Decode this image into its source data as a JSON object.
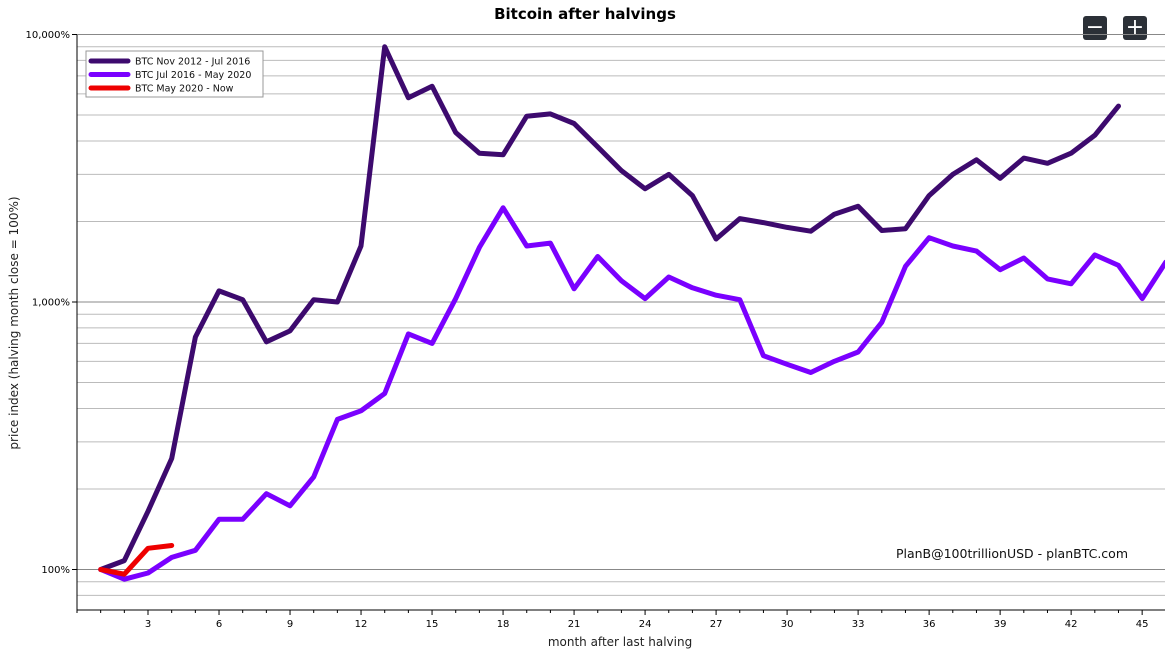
{
  "zoom": {
    "out_label": "−",
    "in_label": "+"
  },
  "chart_data": {
    "type": "line",
    "title": "Bitcoin after halvings",
    "xlabel": "month after last halving",
    "ylabel": "price index (halving month close = 100%)",
    "xlim": [
      0,
      46.8
    ],
    "ylim": [
      75,
      10000
    ],
    "y_scale": "log",
    "x_ticks": [
      3,
      6,
      9,
      12,
      15,
      18,
      21,
      24,
      27,
      30,
      33,
      36,
      39,
      42,
      45
    ],
    "y_ticks": [
      {
        "value": 100,
        "label": "100%"
      },
      {
        "value": 1000,
        "label": "1,000%"
      },
      {
        "value": 10000,
        "label": "10,000%"
      }
    ],
    "grid": true,
    "legend_position": "top-left",
    "annotation": "PlanB@100trillionUSD  -  planBTC.com",
    "series": [
      {
        "name": "BTC Nov 2012 - Jul 2016",
        "color": "#3d0a6e",
        "x": [
          0,
          1,
          2,
          3,
          4,
          5,
          6,
          7,
          8,
          9,
          10,
          11,
          12,
          13,
          14,
          15,
          16,
          17,
          18,
          19,
          20,
          21,
          22,
          23,
          24,
          25,
          26,
          27,
          28,
          29,
          30,
          31,
          32,
          33,
          34,
          35,
          36,
          37,
          38,
          39,
          40,
          41,
          42,
          43,
          44
        ],
        "values": [
          100,
          108,
          165,
          260,
          740,
          1100,
          1020,
          710,
          780,
          1020,
          1000,
          1620,
          9000,
          5800,
          6400,
          4300,
          3600,
          3550,
          4950,
          5050,
          4650,
          3800,
          3100,
          2650,
          3000,
          2500,
          1720,
          2050,
          1980,
          1900,
          1840,
          2130,
          2280,
          1850,
          1880,
          2500,
          3000,
          3400,
          2900,
          3450,
          3300,
          3600,
          4200,
          5400,
          null
        ]
      },
      {
        "name": "BTC Jul 2016 - May 2020",
        "color": "#7a00ff",
        "x": [
          0,
          1,
          2,
          3,
          4,
          5,
          6,
          7,
          8,
          9,
          10,
          11,
          12,
          13,
          14,
          15,
          16,
          17,
          18,
          19,
          20,
          21,
          22,
          23,
          24,
          25,
          26,
          27,
          28,
          29,
          30,
          31,
          32,
          33,
          34,
          35,
          36,
          37,
          38,
          39,
          40,
          41,
          42,
          43,
          44,
          45,
          46,
          47
        ],
        "values": [
          100,
          92,
          97,
          111,
          118,
          154,
          154,
          192,
          173,
          222,
          364,
          392,
          455,
          760,
          700,
          1030,
          1600,
          2250,
          1620,
          1660,
          1120,
          1480,
          1200,
          1030,
          1240,
          1130,
          1060,
          1020,
          630,
          585,
          545,
          600,
          650,
          840,
          1360,
          1740,
          1620,
          1550,
          1320,
          1460,
          1220,
          1170,
          1500,
          1370,
          1030,
          1410,
          1520,
          null
        ]
      },
      {
        "name": "BTC May 2020 - Now",
        "color": "#ee0000",
        "x": [
          0,
          1,
          2,
          3
        ],
        "values": [
          100,
          96,
          120,
          123
        ]
      }
    ]
  }
}
